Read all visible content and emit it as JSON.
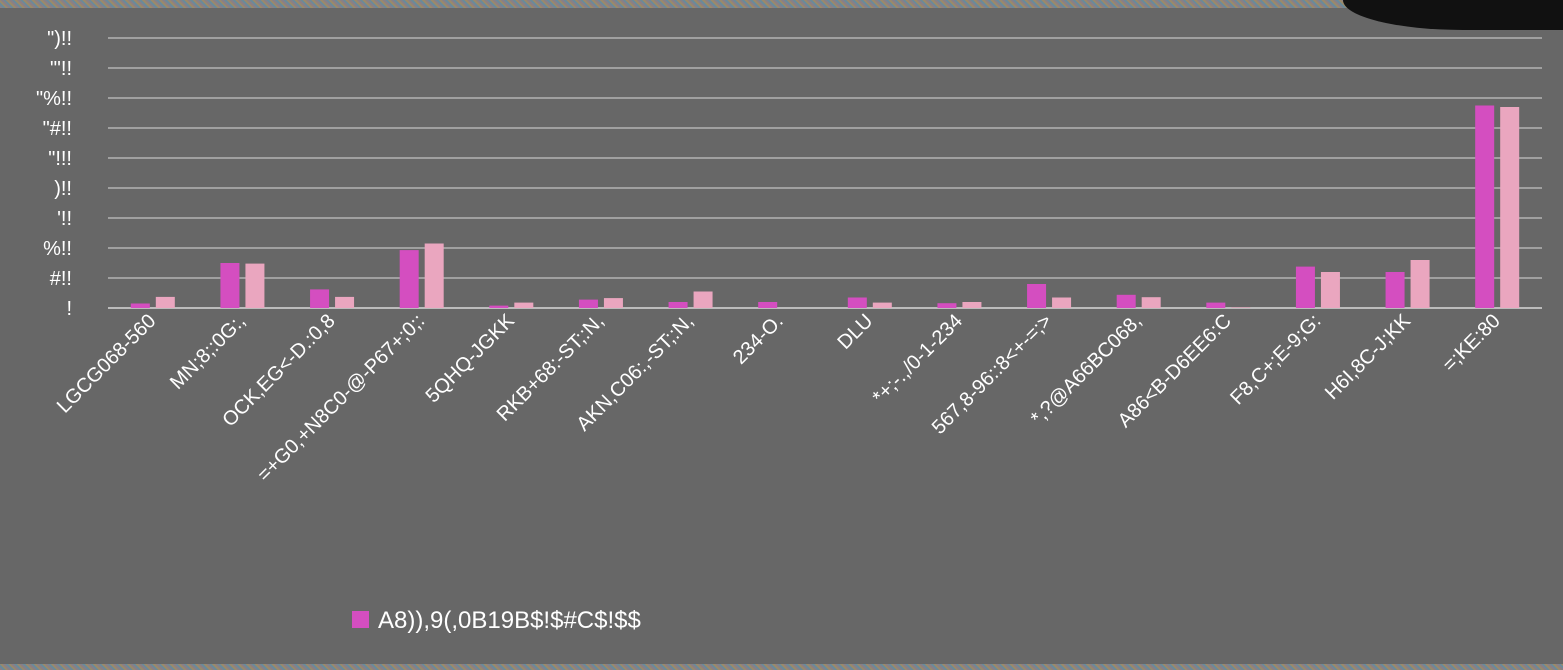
{
  "chart_data": {
    "type": "bar",
    "title": "",
    "xlabel": "",
    "ylabel": "",
    "ylim": [
      0,
      9
    ],
    "y_tick_labels": [
      "!",
      "#!!",
      "%!!",
      "'!!",
      ")!!",
      "\"!!!",
      "\"#!!",
      "\"%!!",
      "\"'!!",
      "\")!!"
    ],
    "grid": true,
    "legend_position": "bottom",
    "categories": [
      "LGCG068-560",
      "MN;8;:0G:,",
      "OCK,EG<-D.:0,8",
      "=+G0,+N8C0-@-P67+;0;:",
      "5QHQ-JGKK",
      "RKB+68:-ST;:N,",
      "AKN,C06:,-ST;:N,",
      "234-O.",
      "DLU",
      "*+;-.,/0-1-234",
      "567,8-96::8<+-=;>",
      "*,?@A66BC068,",
      "A86<B-D6EE6:C",
      "F8,C+;E-9;G:",
      "H6I,8C-J;KK",
      "=;KE:80"
    ],
    "series": [
      {
        "name": "A8)),9(,0B19B$!$#C$!$$",
        "color": "#d44ec0",
        "values": [
          0.15,
          1.5,
          0.62,
          1.93,
          0.08,
          0.28,
          0.2,
          0.2,
          0.35,
          0.16,
          0.8,
          0.44,
          0.18,
          1.38,
          1.2,
          6.75
        ]
      },
      {
        "color": "#eaa6bf",
        "values": [
          0.37,
          1.48,
          0.37,
          2.15,
          0.18,
          0.33,
          0.55,
          0.0,
          0.18,
          0.2,
          0.35,
          0.36,
          0.02,
          1.2,
          1.6,
          6.7
        ]
      }
    ]
  }
}
